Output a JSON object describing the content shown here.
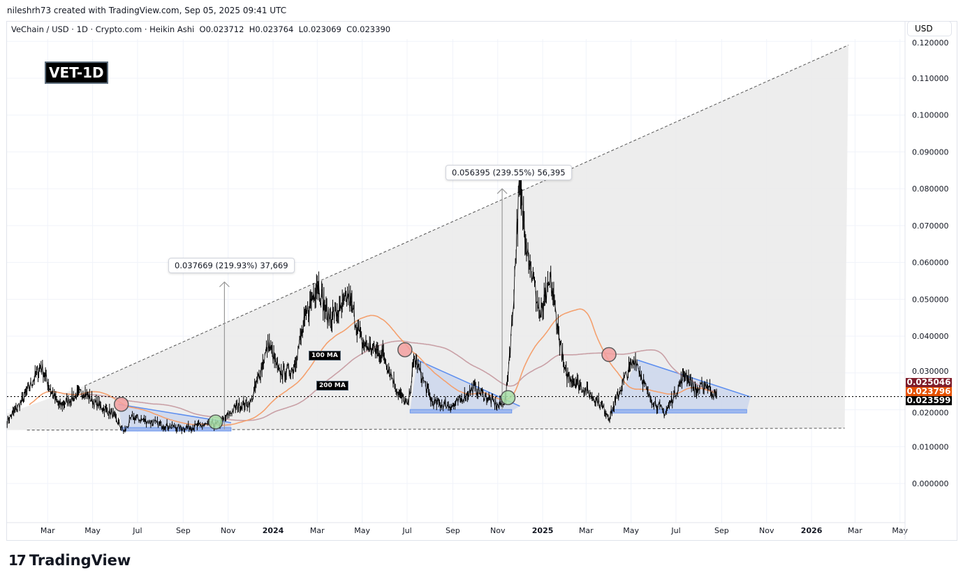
{
  "credit": "nileshrh73 created with TradingView.com, Sep 05, 2025 09:41 UTC",
  "legend": "VeChain / USD · 1D · Crypto.com · Heikin Ashi  O0.023712  H0.023764  L0.023069  C0.023390",
  "badge": "VET-1D",
  "currency": "USD",
  "brand": "TradingView",
  "price_tags": [
    {
      "value": "0.025046",
      "color": "#7f1d2b"
    },
    {
      "value": "0.023796",
      "color": "#e65100"
    },
    {
      "value": "0.023599",
      "color": "#000000"
    }
  ],
  "annotations": {
    "measure1": "0.037669 (219.93%) 37,669",
    "measure2": "0.056395 (239.55%) 56,395",
    "ma100": "100 MA",
    "ma200": "200 MA"
  },
  "chart_data": {
    "type": "line",
    "title": "",
    "series_style": "Heikin Ashi",
    "colors": {
      "price": "#000000",
      "ma100": "#f4a06e",
      "ma200": "#c9a0a6",
      "wedge": "#5b8def",
      "triangle_fill": "#ebebeb"
    },
    "xlim": [
      "2023-01-01",
      "2026-05-31"
    ],
    "ylim": [
      -0.013,
      0.123
    ],
    "x_ticks": [
      "Mar",
      "May",
      "Jul",
      "Sep",
      "Nov",
      "2024",
      "Mar",
      "May",
      "Jul",
      "Sep",
      "Nov",
      "2025",
      "Mar",
      "May",
      "Jul",
      "Sep",
      "Nov",
      "2026",
      "Mar",
      "May"
    ],
    "x_tick_dates": [
      "2023-03-01",
      "2023-05-01",
      "2023-07-01",
      "2023-09-01",
      "2023-11-01",
      "2024-01-01",
      "2024-03-01",
      "2024-05-01",
      "2024-07-01",
      "2024-09-01",
      "2024-11-01",
      "2025-01-01",
      "2025-03-01",
      "2025-05-01",
      "2025-07-01",
      "2025-09-01",
      "2025-11-01",
      "2026-01-01",
      "2026-03-01",
      "2026-05-01"
    ],
    "y_ticks": [
      "0.120000",
      "0.110000",
      "0.100000",
      "0.090000",
      "0.080000",
      "0.070000",
      "0.060000",
      "0.050000",
      "0.040000",
      "0.030000",
      "0.020000",
      "0.010000",
      "0.000000"
    ],
    "y_tick_values": [
      0.12,
      0.11,
      0.1,
      0.09,
      0.08,
      0.07,
      0.06,
      0.05,
      0.04,
      0.03,
      0.02,
      0.01,
      0.0
    ],
    "grid": true,
    "last_price": 0.023599,
    "price": [
      [
        "2023-01-05",
        0.017
      ],
      [
        "2023-01-24",
        0.022
      ],
      [
        "2023-02-20",
        0.032
      ],
      [
        "2023-03-06",
        0.025
      ],
      [
        "2023-03-17",
        0.021
      ],
      [
        "2023-04-19",
        0.025
      ],
      [
        "2023-05-03",
        0.022
      ],
      [
        "2023-05-27",
        0.019
      ],
      [
        "2023-06-13",
        0.014
      ],
      [
        "2023-06-24",
        0.018
      ],
      [
        "2023-08-01",
        0.016
      ],
      [
        "2023-08-29",
        0.015
      ],
      [
        "2023-10-06",
        0.016
      ],
      [
        "2023-10-20",
        0.016
      ],
      [
        "2023-11-13",
        0.021
      ],
      [
        "2023-12-02",
        0.022
      ],
      [
        "2023-12-26",
        0.038
      ],
      [
        "2024-01-09",
        0.03
      ],
      [
        "2024-01-28",
        0.031
      ],
      [
        "2024-02-16",
        0.046
      ],
      [
        "2024-03-01",
        0.055
      ],
      [
        "2024-03-15",
        0.045
      ],
      [
        "2024-04-03",
        0.047
      ],
      [
        "2024-04-12",
        0.051
      ],
      [
        "2024-05-01",
        0.038
      ],
      [
        "2024-05-30",
        0.035
      ],
      [
        "2024-06-18",
        0.025
      ],
      [
        "2024-07-02",
        0.021
      ],
      [
        "2024-07-11",
        0.034
      ],
      [
        "2024-08-04",
        0.022
      ],
      [
        "2024-09-02",
        0.021
      ],
      [
        "2024-09-30",
        0.026
      ],
      [
        "2024-11-02",
        0.021
      ],
      [
        "2024-11-12",
        0.023
      ],
      [
        "2024-11-21",
        0.045
      ],
      [
        "2024-11-30",
        0.08
      ],
      [
        "2024-12-15",
        0.06
      ],
      [
        "2024-12-29",
        0.045
      ],
      [
        "2025-01-12",
        0.055
      ],
      [
        "2025-01-31",
        0.03
      ],
      [
        "2025-02-19",
        0.027
      ],
      [
        "2025-03-19",
        0.022
      ],
      [
        "2025-04-02",
        0.018
      ],
      [
        "2025-04-21",
        0.028
      ],
      [
        "2025-05-07",
        0.034
      ],
      [
        "2025-05-24",
        0.024
      ],
      [
        "2025-06-16",
        0.019
      ],
      [
        "2025-07-14",
        0.03
      ],
      [
        "2025-07-28",
        0.025
      ],
      [
        "2025-08-11",
        0.027
      ],
      [
        "2025-08-25",
        0.0234
      ]
    ],
    "trend_upper": [
      [
        "2023-04-20",
        0.0265
      ],
      [
        "2026-02-20",
        0.119
      ]
    ],
    "trend_lower": [
      [
        "2023-02-01",
        0.0145
      ],
      [
        "2026-02-15",
        0.015
      ]
    ],
    "wedges": [
      {
        "top": [
          [
            "2023-06-05",
            0.0215
          ],
          [
            "2023-11-05",
            0.0165
          ]
        ],
        "bottom": [
          [
            "2023-06-10",
            0.0148
          ],
          [
            "2023-11-05",
            0.0148
          ]
        ]
      },
      {
        "top": [
          [
            "2024-07-15",
            0.0335
          ],
          [
            "2024-12-01",
            0.021
          ]
        ],
        "bottom": [
          [
            "2024-07-05",
            0.0197
          ],
          [
            "2024-11-20",
            0.0197
          ]
        ]
      },
      {
        "top": [
          [
            "2025-05-10",
            0.0335
          ],
          [
            "2025-10-10",
            0.0235
          ]
        ],
        "bottom": [
          [
            "2025-04-05",
            0.0197
          ],
          [
            "2025-10-05",
            0.0197
          ]
        ]
      }
    ],
    "signals": [
      {
        "date": "2023-06-09",
        "price": 0.0215,
        "type": "bearish"
      },
      {
        "date": "2023-10-15",
        "price": 0.0167,
        "type": "bullish"
      },
      {
        "date": "2024-06-28",
        "price": 0.0363,
        "type": "bearish"
      },
      {
        "date": "2024-11-15",
        "price": 0.0233,
        "type": "bullish"
      },
      {
        "date": "2025-04-01",
        "price": 0.035,
        "type": "bearish"
      }
    ],
    "measures": [
      {
        "date": "2023-10-27",
        "from": 0.0147,
        "to": 0.0547
      },
      {
        "date": "2024-11-07",
        "from": 0.0201,
        "to": 0.08
      }
    ]
  }
}
